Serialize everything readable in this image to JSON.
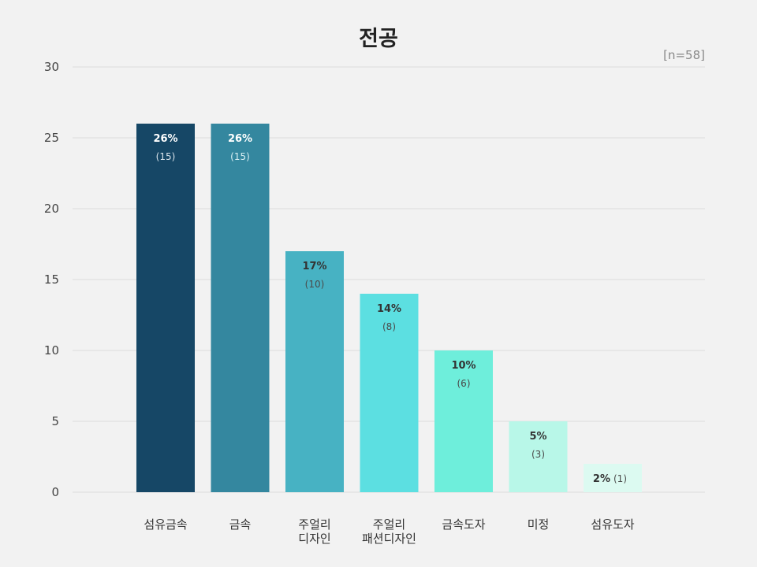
{
  "chart_data": {
    "type": "bar",
    "title": "전공",
    "note": "[n=58]",
    "xlabel": "",
    "ylabel": "",
    "ylim": [
      0,
      30
    ],
    "yticks": [
      "0",
      "5",
      "10",
      "15",
      "20",
      "25",
      "30"
    ],
    "grid": true,
    "categories": [
      [
        "섬유금속"
      ],
      [
        "금속"
      ],
      [
        "주얼리",
        "디자인"
      ],
      [
        "주얼리",
        "패션디자인"
      ],
      [
        "금속도자"
      ],
      [
        "미정"
      ],
      [
        "섬유도자"
      ]
    ],
    "values": [
      26,
      26,
      17,
      14,
      10,
      5,
      2
    ],
    "labels": [
      "26%",
      "26%",
      "17%",
      "14%",
      "10%",
      "5%",
      "2%"
    ],
    "counts": [
      "(15)",
      "(15)",
      "(10)",
      "(8)",
      "(6)",
      "(3)",
      "(1)"
    ],
    "colors": [
      "#164766",
      "#34879f",
      "#47b2c3",
      "#5cdfe1",
      "#6eeedb",
      "#b8f7e8",
      "#dcfaf1"
    ],
    "label_colors": [
      "#ffffff",
      "#ffffff",
      "#333333",
      "#333333",
      "#333333",
      "#333333",
      "#333333"
    ],
    "count_colors": [
      "#d8e2ea",
      "#d8eef2",
      "#4a4a4a",
      "#4a4a4a",
      "#4a4a4a",
      "#4a4a4a",
      "#4a4a4a"
    ]
  }
}
